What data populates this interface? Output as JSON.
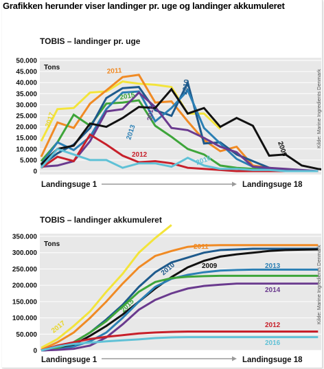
{
  "header": "Grafikken herunder viser landinger pr. uge og landinger akkumuleret",
  "chart_data": [
    {
      "type": "line",
      "title": "TOBIS – landinger pr. uge",
      "unit_label": "Tons",
      "ylim": [
        0,
        50000
      ],
      "yticks": [
        "0",
        "5.000",
        "10.000",
        "15.000",
        "20.000",
        "25.000",
        "30.000",
        "35.000",
        "40.000",
        "45.000",
        "50.000"
      ],
      "x_start_label": "Landingsuge 1",
      "x_end_label": "Landingsuge 18",
      "source": "Kilde: Marine Ingredients Denmark",
      "grid": true,
      "series": [
        {
          "name": "2017",
          "color": "#f3e43b",
          "values": [
            13500,
            28000,
            28500,
            35500,
            36000,
            40500,
            39500,
            39000,
            38000,
            26000,
            26000,
            19000
          ]
        },
        {
          "name": "2011",
          "color": "#f08a24",
          "values": [
            6500,
            22000,
            19500,
            30500,
            36500,
            42500,
            43500,
            31000,
            31500,
            22500,
            14000,
            9000,
            11000,
            2500,
            1500,
            500,
            0,
            0
          ]
        },
        {
          "name": "2015",
          "color": "#3ea53a",
          "values": [
            4500,
            13000,
            25500,
            20500,
            30500,
            31000,
            32000,
            20500,
            15500,
            10000,
            7500,
            2500,
            1500,
            1000,
            500,
            0,
            0,
            0
          ]
        },
        {
          "name": "2010",
          "color": "#1e5a8c",
          "values": [
            2500,
            8000,
            12000,
            19500,
            33000,
            37500,
            38000,
            27500,
            25000,
            40000,
            12500,
            13000,
            7500,
            4500,
            1500,
            500,
            0,
            0
          ]
        },
        {
          "name": "2013",
          "color": "#2b7fb4",
          "values": [
            3000,
            13000,
            9500,
            15500,
            28000,
            35500,
            36000,
            22500,
            28500,
            36500,
            19500,
            12500,
            5500,
            2000,
            1000,
            500,
            0,
            0
          ]
        },
        {
          "name": "2014",
          "color": "#6a3a8e",
          "values": [
            2000,
            2500,
            4500,
            13500,
            27000,
            28000,
            35500,
            29000,
            19500,
            18500,
            15000,
            11000,
            8500,
            2000,
            1500,
            1000,
            500,
            0
          ]
        },
        {
          "name": "2009",
          "color": "#111111",
          "values": [
            3000,
            10000,
            11500,
            21500,
            20000,
            24000,
            29000,
            28500,
            37000,
            26000,
            28500,
            20000,
            24000,
            20500,
            7000,
            7500,
            2500,
            1000,
            0
          ]
        },
        {
          "name": "2012",
          "color": "#c7202a",
          "values": [
            1500,
            6500,
            4500,
            16500,
            12000,
            7000,
            4000,
            4500,
            3500,
            1500,
            1000,
            500,
            0,
            0,
            0,
            0,
            0,
            0
          ]
        },
        {
          "name": "2016",
          "color": "#5fc1d6",
          "values": [
            1500,
            10000,
            7500,
            5000,
            5000,
            1500,
            3500,
            3500,
            2000,
            6000,
            2500,
            1000,
            1000,
            500,
            500,
            0,
            0,
            0
          ]
        }
      ],
      "series_labels": [
        {
          "name": "2011",
          "text": "2011"
        },
        {
          "name": "2017",
          "text": "2017"
        },
        {
          "name": "2015",
          "text": "2015"
        },
        {
          "name": "2014",
          "text": "2014"
        },
        {
          "name": "2013",
          "text": "2013"
        },
        {
          "name": "2010",
          "text": "2010"
        },
        {
          "name": "2012",
          "text": "2012"
        },
        {
          "name": "2016",
          "text": "2016"
        },
        {
          "name": "2009",
          "text": "2009"
        }
      ]
    },
    {
      "type": "line",
      "title": "TOBIS – landinger akkumuleret",
      "unit_label": "Tons",
      "ylim": [
        0,
        350000
      ],
      "yticks": [
        "0",
        "50.000",
        "100.000",
        "150.000",
        "200.000",
        "250.000",
        "300.000",
        "350.000"
      ],
      "x_start_label": "Landingsuge 1",
      "x_end_label": "Landingsuge 18",
      "source": "Kilde: Marine Ingredients Denmark",
      "grid": true,
      "series": [
        {
          "name": "2017",
          "color": "#f3e43b",
          "values": [
            8000,
            35000,
            75000,
            120000,
            180000,
            235000,
            300000,
            345000,
            385000
          ]
        },
        {
          "name": "2011",
          "color": "#f08a24",
          "values": [
            2000,
            25000,
            55000,
            100000,
            150000,
            205000,
            255000,
            290000,
            305000,
            318000,
            322000,
            323000,
            323000,
            323000,
            323000,
            323000,
            323000,
            323000
          ]
        },
        {
          "name": "2010",
          "color": "#1e5a8c",
          "values": [
            0,
            5000,
            25000,
            55000,
            95000,
            140000,
            195000,
            240000,
            270000,
            285000,
            300000,
            308000,
            310000,
            312000,
            312000,
            312000,
            312000,
            312000
          ]
        },
        {
          "name": "2009",
          "color": "#111111",
          "values": [
            0,
            3000,
            18000,
            45000,
            75000,
            110000,
            150000,
            190000,
            225000,
            255000,
            275000,
            288000,
            295000,
            300000,
            305000,
            308000,
            309000,
            310000
          ]
        },
        {
          "name": "2013",
          "color": "#2b7fb4",
          "values": [
            0,
            3000,
            12000,
            28000,
            55000,
            100000,
            150000,
            195000,
            220000,
            232000,
            240000,
            245000,
            247000,
            248000,
            248000,
            248000,
            248000,
            248000
          ]
        },
        {
          "name": "2015",
          "color": "#3ea53a",
          "values": [
            0,
            8000,
            25000,
            55000,
            90000,
            135000,
            180000,
            210000,
            222000,
            226000,
            228000,
            229000,
            229000,
            229000,
            229000,
            229000,
            229000,
            229000
          ]
        },
        {
          "name": "2014",
          "color": "#6a3a8e",
          "values": [
            0,
            2000,
            5000,
            15000,
            40000,
            80000,
            125000,
            155000,
            175000,
            190000,
            198000,
            202000,
            205000,
            205000,
            205000,
            205000,
            205000,
            205000
          ]
        },
        {
          "name": "2012",
          "color": "#c7202a",
          "values": [
            0,
            15000,
            25000,
            35000,
            42000,
            47000,
            52000,
            55000,
            57000,
            58000,
            58000,
            58000,
            58000,
            58000,
            58000,
            58000,
            58000,
            58000
          ]
        },
        {
          "name": "2016",
          "color": "#5fc1d6",
          "values": [
            0,
            12000,
            20000,
            24000,
            28000,
            31000,
            34000,
            38000,
            40000,
            41000,
            41000,
            41000,
            41000,
            41000,
            41000,
            41000,
            41000,
            41000
          ]
        }
      ],
      "series_labels": [
        {
          "name": "2017",
          "text": "2017"
        },
        {
          "name": "2011",
          "text": "2011"
        },
        {
          "name": "2015",
          "text": "2015"
        },
        {
          "name": "2010",
          "text": "2010"
        },
        {
          "name": "2009",
          "text": "2009"
        },
        {
          "name": "2013",
          "text": "2013"
        },
        {
          "name": "2014",
          "text": "2014"
        },
        {
          "name": "2012",
          "text": "2012"
        },
        {
          "name": "2016",
          "text": "2016"
        }
      ]
    }
  ]
}
